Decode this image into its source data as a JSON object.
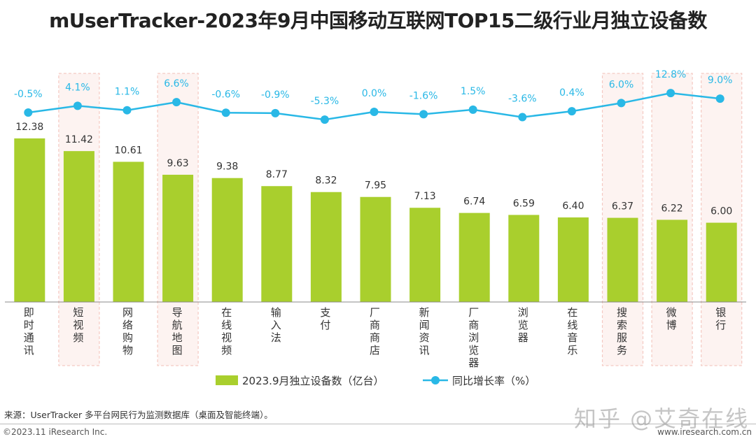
{
  "title": "mUserTracker-2023年9月中国移动互联网TOP15二级行业月独立设备数",
  "chart_data": {
    "type": "bar+line",
    "categories": [
      "即时通讯",
      "短视频",
      "网络购物",
      "导航地图",
      "在线视频",
      "输入法",
      "支付",
      "厂商商店",
      "新闻资讯",
      "厂商浏览器",
      "浏览器",
      "在线音乐",
      "搜索服务",
      "微博",
      "银行"
    ],
    "bar_series": {
      "name": "2023.9月独立设备数（亿台）",
      "values": [
        12.38,
        11.42,
        10.61,
        9.63,
        9.38,
        8.77,
        8.32,
        7.95,
        7.13,
        6.74,
        6.59,
        6.4,
        6.37,
        6.22,
        6.0
      ],
      "labels": [
        "12.38",
        "11.42",
        "10.61",
        "9.63",
        "9.38",
        "8.77",
        "8.32",
        "7.95",
        "7.13",
        "6.74",
        "6.59",
        "6.40",
        "6.37",
        "6.22",
        "6.00"
      ],
      "color": "#a9cf2d"
    },
    "line_series": {
      "name": "同比增长率（%）",
      "values": [
        -0.5,
        4.1,
        1.1,
        6.6,
        -0.6,
        -0.9,
        -5.3,
        0.0,
        -1.6,
        1.5,
        -3.6,
        0.4,
        6.0,
        12.8,
        9.0
      ],
      "labels": [
        "-0.5%",
        "4.1%",
        "1.1%",
        "6.6%",
        "-0.6%",
        "-0.9%",
        "-5.3%",
        "0.0%",
        "-1.6%",
        "1.5%",
        "-3.6%",
        "0.4%",
        "6.0%",
        "12.8%",
        "9.0%"
      ],
      "color": "#29b8e6"
    },
    "highlighted": [
      "短视频",
      "导航地图",
      "搜索服务",
      "微博",
      "银行"
    ],
    "highlight_color": "#f4c9c2",
    "legend_position": "bottom"
  },
  "source": "来源：UserTracker 多平台网民行为监测数据库（桌面及智能终端）。",
  "copyright": "©2023.11 iResearch Inc.",
  "site": "www.iresearch.com.cn",
  "watermark": "知乎 @艾奇在线"
}
